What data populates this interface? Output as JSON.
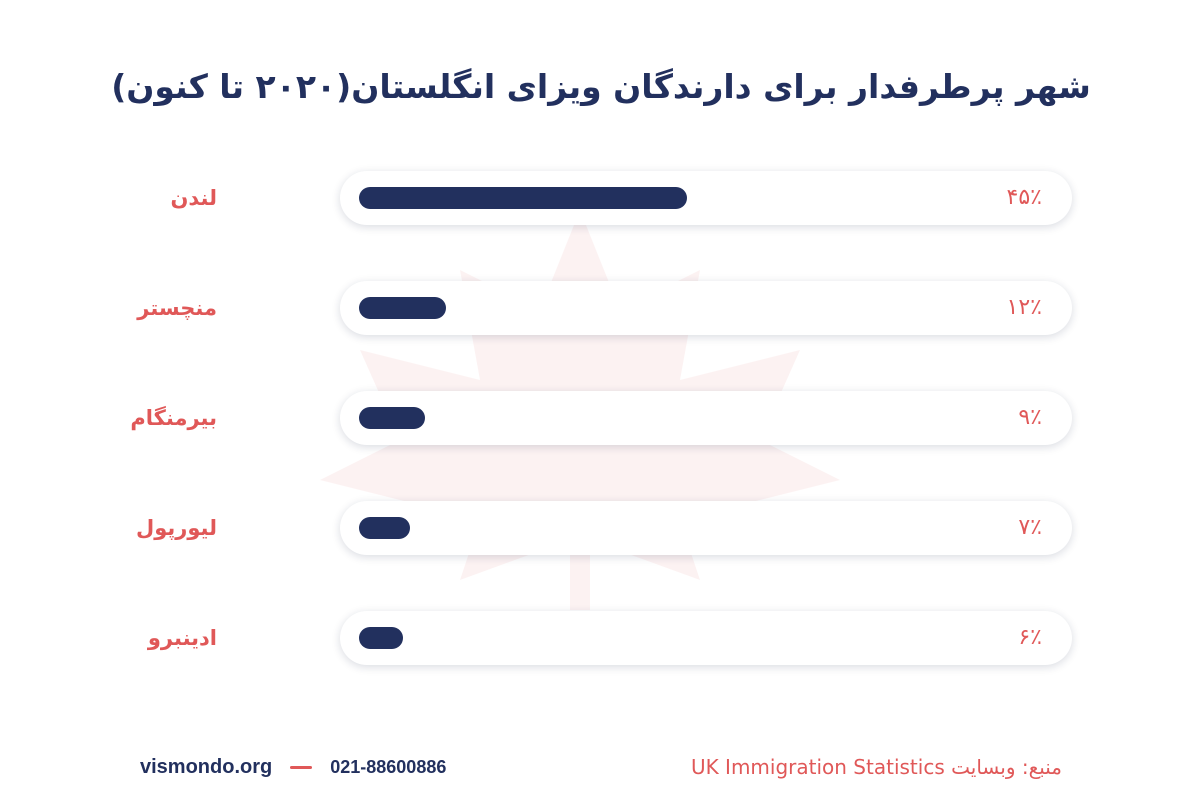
{
  "chart_data": {
    "type": "bar",
    "orientation": "horizontal",
    "title": "شهر پرطرفدار برای دارندگان ویزای انگلستان(۲۰۲۰ تا کنون)",
    "xlabel": "",
    "ylabel": "",
    "xlim": [
      0,
      100
    ],
    "grid": false,
    "legend": "none",
    "categories": [
      "لندن",
      "منچستر",
      "بیرمنگام",
      "لیورپول",
      "ادینبرو"
    ],
    "values": [
      45,
      12,
      9,
      7,
      6
    ],
    "value_labels": [
      "۴۵٪",
      "۱۲٪",
      "۹٪",
      "۷٪",
      "۶٪"
    ],
    "colors": {
      "bar": "#22305e",
      "label": "#e05858",
      "track": "#ffffff"
    }
  },
  "footer": {
    "website": "vismondo.org",
    "phone": "021-88600886",
    "source": "منبع: وبسایت UK Immigration Statistics"
  },
  "decor": {
    "watermark": "maple-leaf-icon"
  }
}
